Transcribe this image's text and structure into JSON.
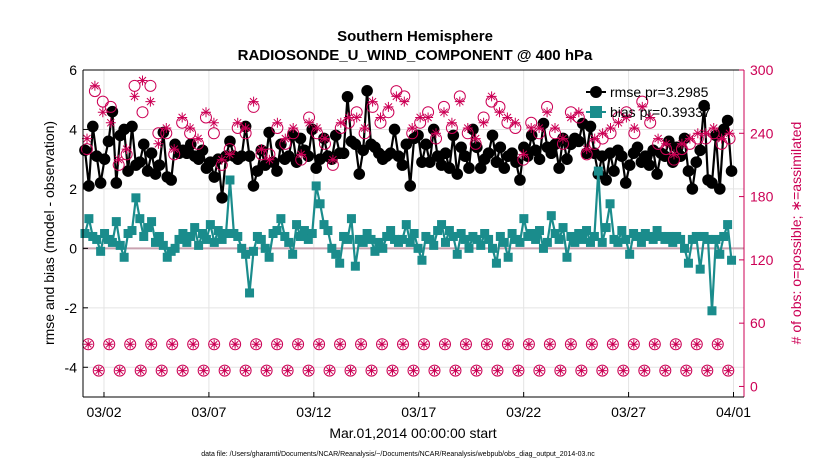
{
  "chart_data": {
    "type": "line",
    "title": "Southern Hemisphere",
    "subtitle": "RADIOSONDE_U_WIND_COMPONENT @ 400 hPa",
    "xlabel": "Mar.01,2014 00:00:00 start",
    "ylabel": "rmse and bias (model - observation)",
    "y2label": "# of obs: o=possible; ∗=assimilated",
    "ylim": [
      -5,
      6
    ],
    "y2lim": [
      -10,
      300
    ],
    "yticks": [
      "-4",
      "-2",
      "0",
      "2",
      "4",
      "6"
    ],
    "y2ticks": [
      "0",
      "60",
      "120",
      "180",
      "240",
      "300"
    ],
    "xlim": [
      0,
      31.5
    ],
    "xticks": [
      {
        "day": 1,
        "label": "03/02"
      },
      {
        "day": 6,
        "label": "03/07"
      },
      {
        "day": 11,
        "label": "03/12"
      },
      {
        "day": 16,
        "label": "03/17"
      },
      {
        "day": 21,
        "label": "03/22"
      },
      {
        "day": 26,
        "label": "03/27"
      },
      {
        "day": 31,
        "label": "04/01"
      }
    ],
    "grid": true,
    "legend_position": "top-right",
    "footnote": "data file: /Users/gharamti/Documents/NCAR/Reanalysis/~/Documents/NCAR/Reanalysis/webpub/obs_diag_output_2014-03.nc",
    "series": [
      {
        "name": "rmse",
        "legend_label": "rmse pr=3.2985",
        "color": "#000000",
        "marker": "circle",
        "axis": "left",
        "values": [
          3.3,
          2.1,
          4.1,
          3.1,
          2.2,
          3.0,
          3.6,
          4.6,
          2.2,
          3.8,
          4.0,
          2.6,
          4.1,
          2.8,
          2.9,
          3.5,
          2.6,
          3.2,
          2.5,
          2.8,
          3.9,
          2.4,
          2.3,
          3.5,
          3.2,
          3.3,
          3.2,
          3.5,
          3.1,
          3.0,
          3.3,
          2.7,
          2.9,
          2.4,
          3.0,
          1.7,
          3.1,
          3.6,
          3.1,
          3.0,
          3.1,
          4.1,
          3.1,
          2.1,
          2.6,
          3.3,
          2.8,
          3.9,
          2.9,
          2.6,
          3.5,
          3.0,
          3.1,
          3.8,
          2.9,
          3.7,
          3.3,
          3.1,
          4.0,
          2.7,
          3.0,
          3.7,
          3.1,
          3.0,
          3.8,
          3.2,
          3.2,
          5.1,
          3.6,
          3.5,
          2.5,
          3.3,
          5.3,
          3.5,
          3.4,
          3.2,
          3.0,
          3.1,
          3.2,
          4.0,
          3.1,
          2.8,
          3.5,
          2.1,
          3.7,
          3.8,
          2.9,
          3.5,
          2.9,
          4.0,
          3.1,
          2.8,
          3.2,
          2.7,
          3.8,
          2.5,
          3.4,
          3.1,
          2.7,
          4.0,
          3.4,
          2.7,
          3.0,
          3.2,
          3.8,
          2.9,
          3.4,
          2.7,
          3.1,
          3.2,
          2.9,
          2.3,
          3.4,
          3.1,
          3.8,
          3.3,
          3.0,
          4.2,
          3.4,
          3.2,
          3.5,
          2.7,
          3.7,
          3.0,
          3.5,
          3.7,
          3.6,
          4.2,
          3.2,
          4.1,
          3.2,
          2.5,
          3.1,
          2.3,
          3.2,
          2.6,
          3.3,
          3.1,
          2.2,
          2.8,
          3.2,
          3.4,
          2.9,
          3.1,
          2.8,
          3.3,
          2.5,
          3.2,
          3.1,
          3.6,
          2.9,
          3.4,
          3.1,
          3.7,
          2.6,
          2.0,
          2.9,
          3.3,
          4.8,
          2.3,
          2.2,
          3.8,
          2.0,
          4.0,
          4.3,
          2.6
        ]
      },
      {
        "name": "bias",
        "legend_label": "bias pr=0.39337",
        "color": "#1a8c8c",
        "marker": "square",
        "axis": "left",
        "values": [
          0.5,
          1.0,
          0.4,
          0.3,
          -0.1,
          0.5,
          0.3,
          0.2,
          0.9,
          0.1,
          -0.3,
          0.5,
          0.6,
          1.7,
          1.0,
          0.4,
          0.7,
          0.9,
          0.2,
          0.4,
          0.1,
          -0.3,
          -0.1,
          0.0,
          0.3,
          0.5,
          0.2,
          0.4,
          0.7,
          0.1,
          0.5,
          0.3,
          0.8,
          0.2,
          0.6,
          0.3,
          0.5,
          2.3,
          0.5,
          0.4,
          0.0,
          -0.2,
          -1.5,
          -0.1,
          0.4,
          0.3,
          0.0,
          -0.3,
          0.5,
          0.6,
          1.0,
          0.4,
          0.2,
          -0.2,
          0.8,
          0.4,
          0.6,
          0.3,
          0.5,
          2.1,
          1.5,
          0.8,
          0.6,
          0.0,
          -0.2,
          -0.5,
          0.4,
          0.3,
          1.0,
          -0.6,
          0.3,
          0.2,
          0.5,
          0.3,
          -0.1,
          0.2,
          0.0,
          0.4,
          0.6,
          0.3,
          0.2,
          0.3,
          0.8,
          0.2,
          0.5,
          0.0,
          -0.4,
          0.4,
          0.3,
          0.1,
          0.6,
          0.8,
          0.2,
          0.6,
          0.4,
          -0.2,
          0.5,
          0.3,
          0.0,
          0.4,
          0.3,
          0.1,
          0.5,
          0.3,
          0.0,
          -0.5,
          0.4,
          0.2,
          -0.3,
          0.5,
          0.3,
          0.2,
          1.0,
          0.4,
          0.5,
          0.3,
          0.6,
          0.0,
          0.2,
          1.1,
          0.5,
          0.3,
          0.7,
          -0.3,
          0.4,
          0.2,
          0.5,
          0.3,
          0.6,
          0.2,
          0.4,
          2.6,
          0.2,
          0.7,
          1.5,
          0.3,
          0.2,
          0.6,
          0.3,
          -0.2,
          0.5,
          0.4,
          0.2,
          0.5,
          0.4,
          0.3,
          0.6,
          0.4,
          0.3,
          0.4,
          0.2,
          0.4,
          0.3,
          0.0,
          -0.5,
          0.3,
          0.4,
          -0.7,
          0.4,
          0.3,
          -2.1,
          0.3,
          -0.2,
          0.4,
          0.8,
          -0.4
        ]
      },
      {
        "name": "possible",
        "legend_label": "",
        "color": "#cc0055",
        "marker": "open-circle",
        "axis": "right",
        "values": [
          225,
          280,
          270,
          265,
          210,
          220,
          285,
          260,
          285,
          240,
          240,
          220,
          250,
          240,
          230,
          255,
          240,
          210,
          225,
          245,
          240,
          265,
          220,
          220,
          245,
          230,
          240,
          215,
          255,
          240,
          230,
          210,
          245,
          250,
          260,
          240,
          265,
          250,
          260,
          280,
          275,
          240,
          250,
          260,
          235,
          265,
          245,
          275,
          240,
          230,
          255,
          270,
          265,
          250,
          245,
          215,
          250,
          240,
          265,
          240,
          230,
          260,
          255,
          220,
          230,
          235,
          240,
          255,
          260,
          240,
          270,
          250,
          230,
          225,
          215,
          225,
          230,
          235,
          235,
          240,
          230,
          235
        ]
      },
      {
        "name": "assimilated",
        "legend_label": "",
        "color": "#cc0055",
        "marker": "asterisk",
        "axis": "right",
        "values": [
          235,
          285,
          260,
          250,
          215,
          225,
          275,
          290,
          270,
          230,
          245,
          225,
          255,
          245,
          235,
          260,
          250,
          215,
          220,
          250,
          245,
          270,
          225,
          215,
          250,
          235,
          245,
          220,
          250,
          245,
          235,
          215,
          250,
          255,
          255,
          245,
          270,
          255,
          265,
          275,
          270,
          245,
          255,
          255,
          240,
          260,
          250,
          270,
          245,
          235,
          250,
          275,
          260,
          255,
          250,
          220,
          245,
          245,
          260,
          245,
          235,
          255,
          260,
          225,
          235,
          240,
          245,
          250,
          255,
          245,
          265,
          255,
          235,
          230,
          220,
          230,
          235,
          240,
          240,
          245,
          235,
          240
        ]
      }
    ]
  }
}
